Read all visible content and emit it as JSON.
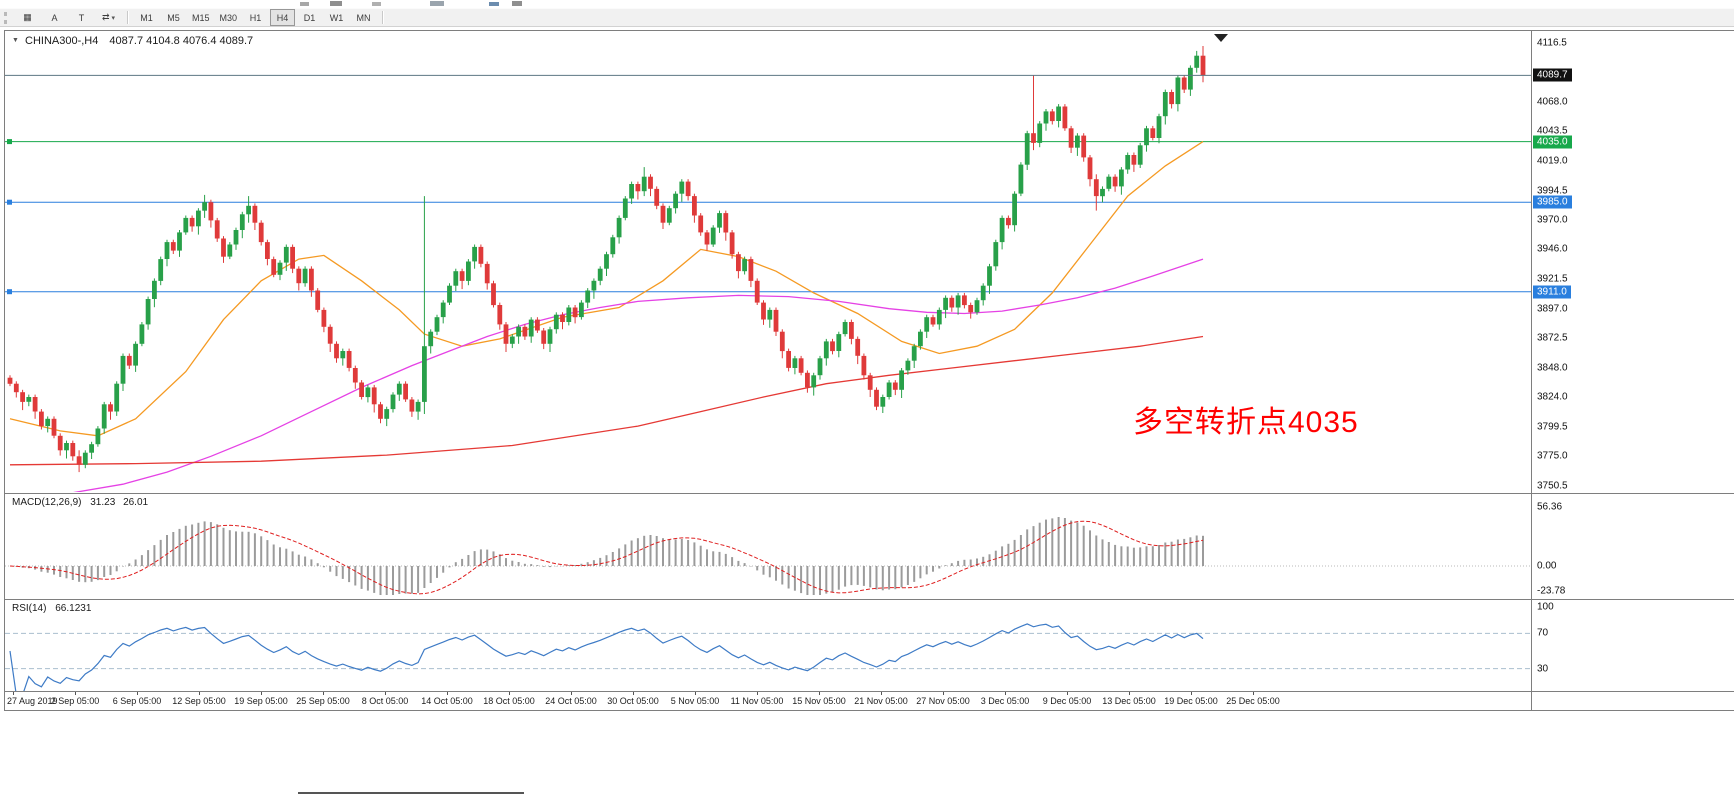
{
  "toolbar": {
    "icons_left": [
      {
        "name": "chart-list-icon",
        "glyph": "▦"
      },
      {
        "name": "letter-a-icon",
        "glyph": "A"
      },
      {
        "name": "text-tool-icon",
        "glyph": "T"
      },
      {
        "name": "cycle-symbols-icon",
        "glyph": "⇄",
        "caret": "▾"
      }
    ],
    "timeframes": [
      "M1",
      "M5",
      "M15",
      "M30",
      "H1",
      "H4",
      "D1",
      "W1",
      "MN"
    ],
    "active_timeframe": "H4"
  },
  "chart_data": [
    {
      "type": "candlestick",
      "context_arrow_glyph": "▼",
      "title": "CHINA300-,H4",
      "ohlc_display": "4087.7 4104.8 4076.4 4089.7",
      "timeframe": "H4",
      "ylim": [
        3750.5,
        4116.5
      ],
      "y_ticks": [
        "4116.5",
        "4068.0",
        "4043.5",
        "4019.0",
        "3994.5",
        "3970.0",
        "3946.0",
        "3921.5",
        "3897.0",
        "3872.5",
        "3848.0",
        "3824.0",
        "3799.5",
        "3775.0",
        "3750.5"
      ],
      "x_labels": [
        "27 Aug 2019",
        "2 Sep 05:00",
        "6 Sep 05:00",
        "12 Sep 05:00",
        "19 Sep 05:00",
        "25 Sep 05:00",
        "8 Oct 05:00",
        "14 Oct 05:00",
        "18 Oct 05:00",
        "24 Oct 05:00",
        "30 Oct 05:00",
        "5 Nov 05:00",
        "11 Nov 05:00",
        "15 Nov 05:00",
        "21 Nov 05:00",
        "27 Nov 05:00",
        "3 Dec 05:00",
        "9 Dec 05:00",
        "13 Dec 05:00",
        "19 Dec 05:00",
        "25 Dec 05:00"
      ],
      "first_open": 3840,
      "closes": [
        3835,
        3828,
        3820,
        3824,
        3812,
        3800,
        3806,
        3792,
        3780,
        3786,
        3775,
        3768,
        3778,
        3785,
        3798,
        3818,
        3812,
        3835,
        3858,
        3850,
        3868,
        3884,
        3905,
        3920,
        3938,
        3952,
        3945,
        3960,
        3972,
        3965,
        3978,
        3985,
        3970,
        3955,
        3940,
        3950,
        3962,
        3975,
        3982,
        3968,
        3952,
        3938,
        3925,
        3935,
        3948,
        3930,
        3918,
        3930,
        3912,
        3896,
        3882,
        3868,
        3856,
        3862,
        3848,
        3836,
        3824,
        3832,
        3818,
        3806,
        3814,
        3826,
        3835,
        3822,
        3812,
        3820,
        3866,
        3878,
        3890,
        3902,
        3916,
        3928,
        3920,
        3936,
        3948,
        3934,
        3918,
        3900,
        3884,
        3868,
        3874,
        3882,
        3874,
        3888,
        3879,
        3868,
        3880,
        3892,
        3886,
        3898,
        3890,
        3902,
        3912,
        3920,
        3930,
        3942,
        3956,
        3972,
        3988,
        4000,
        3994,
        4006,
        3996,
        3982,
        3968,
        3980,
        3992,
        4002,
        3990,
        3974,
        3960,
        3950,
        3964,
        3976,
        3960,
        3942,
        3928,
        3938,
        3920,
        3902,
        3888,
        3896,
        3878,
        3862,
        3848,
        3856,
        3844,
        3832,
        3842,
        3856,
        3870,
        3862,
        3876,
        3886,
        3872,
        3858,
        3842,
        3830,
        3816,
        3824,
        3836,
        3830,
        3846,
        3854,
        3866,
        3878,
        3890,
        3884,
        3896,
        3906,
        3898,
        3908,
        3900,
        3894,
        3904,
        3916,
        3932,
        3952,
        3972,
        3966,
        3992,
        4016,
        4042,
        4034,
        4050,
        4060,
        4052,
        4064,
        4046,
        4030,
        4040,
        4022,
        4004,
        3990,
        3996,
        4006,
        3998,
        4012,
        4024,
        4016,
        4032,
        4046,
        4038,
        4056,
        4076,
        4066,
        4088,
        4078,
        4096,
        4106,
        4089.7
      ],
      "overrides": {
        "11": [
          3775,
          3780,
          3762,
          3768
        ],
        "31": [
          3978,
          3991,
          3972,
          3985
        ],
        "38": [
          3975,
          3990,
          3968,
          3982
        ],
        "66": [
          3820,
          3990,
          3810,
          3866
        ],
        "101": [
          3994,
          4014,
          3990,
          4006
        ],
        "163": [
          4042,
          4090,
          4028,
          4034
        ],
        "173": [
          4004,
          4008,
          3978,
          3990
        ],
        "189": [
          4096,
          4110,
          4092,
          4106
        ],
        "190": [
          4106,
          4114,
          4084,
          4089.7
        ]
      },
      "current_price": {
        "value": 4089.7,
        "label": "4089.7",
        "badge_color": "#111111"
      },
      "hlines": [
        {
          "price": 4035.0,
          "label": "4035.0",
          "color": "#17a84b"
        },
        {
          "price": 3985.0,
          "label": "3985.0",
          "color": "#2a7fde"
        },
        {
          "price": 3911.0,
          "label": "3911.0",
          "color": "#2a7fde"
        }
      ],
      "ma_lines": [
        {
          "name": "ma-medium-orange",
          "color": "#f59a23",
          "points": [
            [
              0,
              3806
            ],
            [
              8,
              3796
            ],
            [
              14,
              3792
            ],
            [
              20,
              3806
            ],
            [
              28,
              3845
            ],
            [
              34,
              3888
            ],
            [
              40,
              3920
            ],
            [
              46,
              3938
            ],
            [
              50,
              3941
            ],
            [
              56,
              3920
            ],
            [
              62,
              3896
            ],
            [
              66,
              3876
            ],
            [
              72,
              3866
            ],
            [
              78,
              3872
            ],
            [
              88,
              3890
            ],
            [
              97,
              3898
            ],
            [
              104,
              3920
            ],
            [
              110,
              3946
            ],
            [
              116,
              3940
            ],
            [
              122,
              3928
            ],
            [
              128,
              3910
            ],
            [
              135,
              3893
            ],
            [
              142,
              3870
            ],
            [
              148,
              3860
            ],
            [
              154,
              3866
            ],
            [
              160,
              3880
            ],
            [
              166,
              3910
            ],
            [
              172,
              3950
            ],
            [
              178,
              3990
            ],
            [
              184,
              4015
            ],
            [
              190,
              4035
            ]
          ]
        },
        {
          "name": "ma-long-magenta",
          "color": "#e542e5",
          "points": [
            [
              0,
              3738
            ],
            [
              10,
              3745
            ],
            [
              18,
              3752
            ],
            [
              25,
              3762
            ],
            [
              32,
              3775
            ],
            [
              40,
              3792
            ],
            [
              48,
              3812
            ],
            [
              56,
              3832
            ],
            [
              64,
              3850
            ],
            [
              70,
              3862
            ],
            [
              76,
              3874
            ],
            [
              82,
              3884
            ],
            [
              88,
              3892
            ],
            [
              94,
              3898
            ],
            [
              100,
              3903
            ],
            [
              108,
              3906
            ],
            [
              116,
              3908
            ],
            [
              124,
              3907
            ],
            [
              132,
              3903
            ],
            [
              140,
              3897
            ],
            [
              146,
              3894
            ],
            [
              152,
              3893
            ],
            [
              158,
              3895
            ],
            [
              164,
              3900
            ],
            [
              170,
              3906
            ],
            [
              176,
              3914
            ],
            [
              182,
              3924
            ],
            [
              190,
              3938
            ]
          ]
        },
        {
          "name": "ma-longest-red",
          "color": "#e53935",
          "points": [
            [
              0,
              3768
            ],
            [
              20,
              3769
            ],
            [
              40,
              3771
            ],
            [
              60,
              3776
            ],
            [
              80,
              3784
            ],
            [
              100,
              3800
            ],
            [
              110,
              3812
            ],
            [
              120,
              3824
            ],
            [
              130,
              3835
            ],
            [
              140,
              3842
            ],
            [
              150,
              3848
            ],
            [
              160,
              3854
            ],
            [
              170,
              3860
            ],
            [
              180,
              3866
            ],
            [
              190,
              3874
            ]
          ]
        }
      ],
      "annotation": {
        "text": "多空转折点4035",
        "color": "#ff0000"
      },
      "colors": {
        "up": "#28a049",
        "down": "#df3a3a",
        "current_line": "#5b7682"
      }
    },
    {
      "type": "macd",
      "title": "MACD(12,26,9)",
      "params": [
        12,
        26,
        9
      ],
      "value_main": "31.23",
      "value_signal": "26.01",
      "y_ticks": [
        "56.36",
        "0.00",
        "-23.78"
      ],
      "colors": {
        "hist": "#9b9b9b",
        "signal": "#df2020",
        "zero_line": "#b8b8b8"
      }
    },
    {
      "type": "rsi",
      "title": "RSI(14)",
      "params": [
        14
      ],
      "value": "66.1231",
      "levels": [
        70,
        30
      ],
      "y_ticks": [
        "100",
        "70",
        "30"
      ],
      "ylim": [
        0,
        100
      ],
      "colors": {
        "line": "#3e7bc6",
        "levels": "#a9bfce"
      }
    }
  ]
}
